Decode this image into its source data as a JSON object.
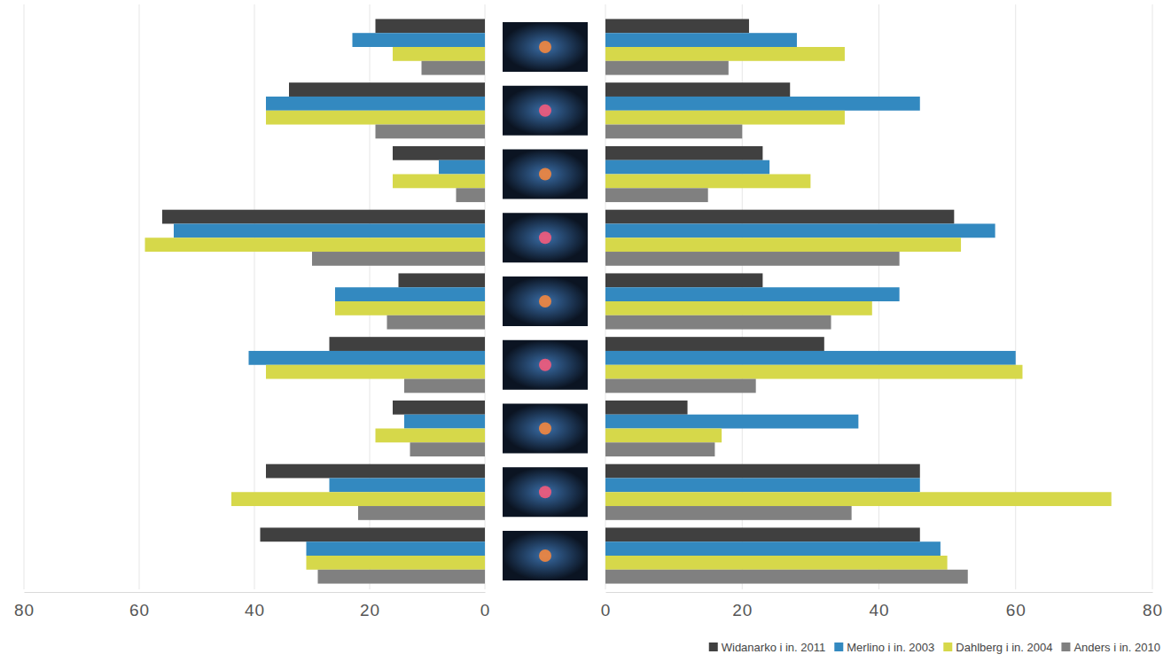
{
  "chart_data": [
    {
      "type": "bar",
      "orientation": "horizontal",
      "grid": true,
      "categories": [
        null,
        null,
        null,
        null,
        null,
        null,
        null,
        null,
        null
      ],
      "xlim": [
        0,
        80
      ],
      "xticks": [
        0,
        20,
        40,
        60,
        80
      ],
      "series": [
        {
          "color": "#404040",
          "values": [
            19,
            34,
            16,
            56,
            15,
            27,
            16,
            38,
            39
          ]
        },
        {
          "color": "#3389c0",
          "values": [
            23,
            38,
            8,
            54,
            26,
            41,
            14,
            27,
            31
          ]
        },
        {
          "color": "#d6d84a",
          "values": [
            16,
            38,
            16,
            59,
            26,
            38,
            19,
            44,
            31
          ]
        },
        {
          "color": "#808080",
          "values": [
            11,
            19,
            5,
            30,
            17,
            14,
            13,
            22,
            29
          ]
        }
      ]
    },
    {
      "type": "bar",
      "orientation": "horizontal",
      "grid": true,
      "legend": "bottom-right",
      "categories": [
        null,
        null,
        null,
        null,
        null,
        null,
        null,
        null,
        null
      ],
      "xlim": [
        0,
        80
      ],
      "xticks": [
        0,
        20,
        40,
        60,
        80
      ],
      "series": [
        {
          "name": "Widanarko i in. 2011",
          "color": "#404040",
          "values": [
            21,
            27,
            23,
            51,
            23,
            32,
            12,
            46,
            46
          ]
        },
        {
          "name": "Merlino i in. 2003",
          "color": "#3389c0",
          "values": [
            28,
            46,
            24,
            57,
            43,
            60,
            37,
            46,
            49
          ]
        },
        {
          "name": "Dahlberg i in. 2004",
          "color": "#d6d84a",
          "values": [
            35,
            35,
            30,
            52,
            39,
            61,
            17,
            74,
            50
          ]
        },
        {
          "name": "Anders i in. 2010",
          "color": "#808080",
          "values": [
            18,
            20,
            15,
            43,
            33,
            22,
            16,
            36,
            53
          ]
        }
      ]
    }
  ]
}
